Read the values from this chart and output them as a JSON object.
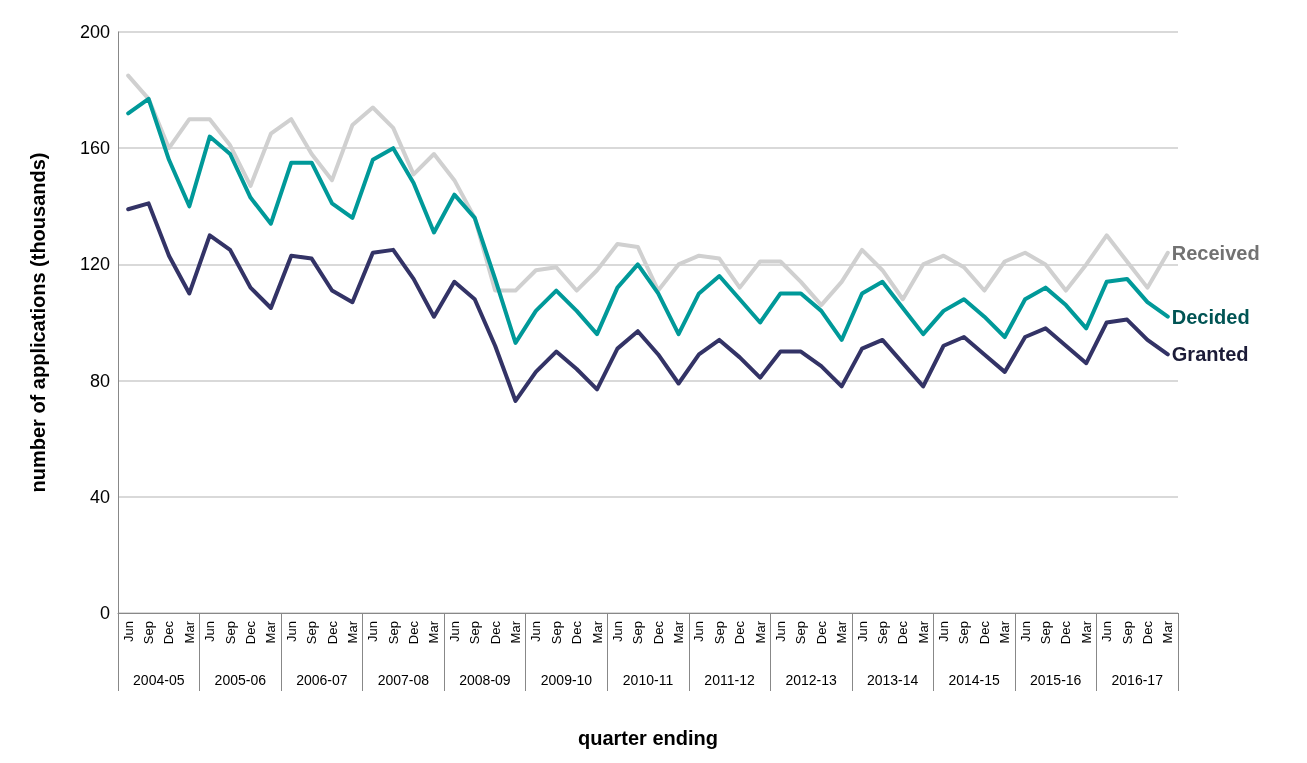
{
  "chart_data": {
    "type": "line",
    "xlabel": "quarter ending",
    "ylabel": "number of applications (thousands)",
    "categories": [
      "Jun",
      "Sep",
      "Dec",
      "Mar",
      "Jun",
      "Sep",
      "Dec",
      "Mar",
      "Jun",
      "Sep",
      "Dec",
      "Mar",
      "Jun",
      "Sep",
      "Dec",
      "Mar",
      "Jun",
      "Sep",
      "Dec",
      "Mar",
      "Jun",
      "Sep",
      "Dec",
      "Mar",
      "Jun",
      "Sep",
      "Dec",
      "Mar",
      "Jun",
      "Sep",
      "Dec",
      "Mar",
      "Jun",
      "Sep",
      "Dec",
      "Mar",
      "Jun",
      "Sep",
      "Dec",
      "Mar",
      "Jun",
      "Sep",
      "Dec",
      "Mar",
      "Jun",
      "Sep",
      "Dec",
      "Mar",
      "Jun",
      "Sep",
      "Dec",
      "Mar"
    ],
    "annotations": [
      "2004-05",
      "2005-06",
      "2006-07",
      "2007-08",
      "2008-09",
      "2009-10",
      "2010-11",
      "2011-12",
      "2012-13",
      "2013-14",
      "2014-15",
      "2015-16",
      "2016-17"
    ],
    "series": [
      {
        "name": "Received",
        "color": "#d0d0d0",
        "values": [
          185,
          177,
          160,
          170,
          170,
          161,
          147,
          165,
          170,
          158,
          149,
          168,
          174,
          167,
          151,
          158,
          149,
          136,
          111,
          111,
          118,
          119,
          111,
          118,
          127,
          126,
          111,
          120,
          123,
          122,
          112,
          121,
          121,
          114,
          106,
          114,
          125,
          118,
          108,
          120,
          123,
          119,
          111,
          121,
          124,
          120,
          111,
          120,
          130,
          121,
          112,
          124
        ]
      },
      {
        "name": "Decided",
        "color": "#009999",
        "values": [
          172,
          177,
          156,
          140,
          164,
          158,
          143,
          134,
          155,
          155,
          141,
          136,
          156,
          160,
          148,
          131,
          144,
          136,
          115,
          93,
          104,
          111,
          104,
          96,
          112,
          120,
          110,
          96,
          110,
          116,
          108,
          100,
          110,
          110,
          104,
          94,
          110,
          114,
          105,
          96,
          104,
          108,
          102,
          95,
          108,
          112,
          106,
          98,
          114,
          115,
          107,
          102
        ]
      },
      {
        "name": "Granted",
        "color": "#333366",
        "values": [
          139,
          141,
          123,
          110,
          130,
          125,
          112,
          105,
          123,
          122,
          111,
          107,
          124,
          125,
          115,
          102,
          114,
          108,
          92,
          73,
          83,
          90,
          84,
          77,
          91,
          97,
          89,
          79,
          89,
          94,
          88,
          81,
          90,
          90,
          85,
          78,
          91,
          94,
          86,
          78,
          92,
          95,
          89,
          83,
          95,
          98,
          92,
          86,
          100,
          101,
          94,
          89
        ]
      }
    ],
    "ylim": [
      0,
      200
    ],
    "yticks": [
      0,
      40,
      80,
      120,
      160,
      200
    ],
    "grid": "y",
    "marker": "none",
    "line_style": "solid",
    "legend": false
  }
}
